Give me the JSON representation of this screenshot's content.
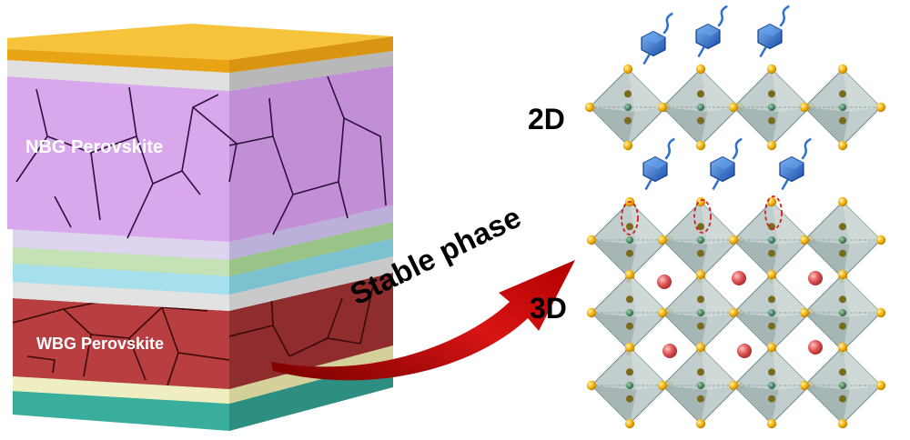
{
  "labels": {
    "nbg": "NBG Perovskite",
    "wbg": "WBG Perovskite",
    "arrow": "Stable phase",
    "two_d": "2D",
    "three_d": "3D"
  },
  "colors": {
    "gold_layer": "#f0b21c",
    "gray_layer": "#d9d9d9",
    "nbg_layer": "#d9a8ec",
    "light_violet_layer": "#ddd5ee",
    "light_green_layer": "#c4e2b5",
    "cyan_layer": "#a6e0ec",
    "wbg_layer": "#b83e40",
    "pale_yellow_layer": "#eeeec0",
    "teal_layer": "#46bfae",
    "arrow": "#d81414",
    "octahedron": "#9fb1b1",
    "atom": "#f5b816",
    "cation": "#e05a5a",
    "organic_cation": "#2f6fcf",
    "marker": "#e01a1a"
  },
  "icons": {
    "organic_cation": "hexagon-molecule-icon",
    "highlight": "dashed-ellipse-icon"
  }
}
